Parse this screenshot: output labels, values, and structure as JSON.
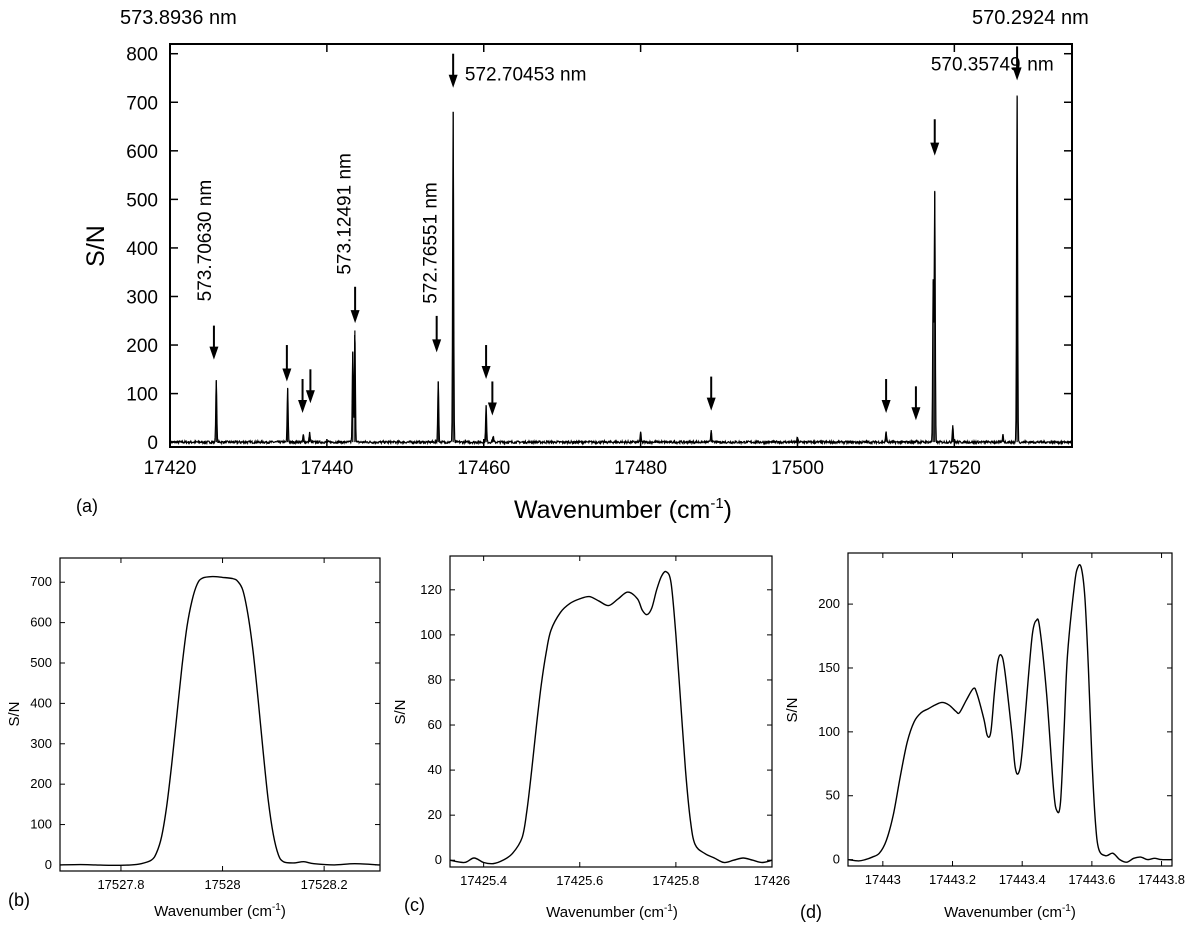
{
  "top_labels": {
    "left": "573.8936 nm",
    "right": "570.2924 nm"
  },
  "chart_data": [
    {
      "panel": "(a)",
      "type": "line",
      "xlabel": "Wavenumber (cm",
      "xlabel_sup": "-1",
      "xlabel_tail": ")",
      "ylabel": "S/N",
      "xlim": [
        17420,
        17535
      ],
      "ylim": [
        -10,
        820
      ],
      "xticks": [
        17420,
        17440,
        17460,
        17480,
        17500,
        17520
      ],
      "yticks": [
        0,
        100,
        200,
        300,
        400,
        500,
        600,
        700,
        800
      ],
      "peaks": [
        {
          "x": 17425.9,
          "y": 128
        },
        {
          "x": 17435.0,
          "y": 110
        },
        {
          "x": 17437.0,
          "y": 15
        },
        {
          "x": 17437.8,
          "y": 20
        },
        {
          "x": 17443.3,
          "y": 185
        },
        {
          "x": 17443.57,
          "y": 230
        },
        {
          "x": 17454.2,
          "y": 125
        },
        {
          "x": 17456.1,
          "y": 680
        },
        {
          "x": 17460.3,
          "y": 75
        },
        {
          "x": 17461.2,
          "y": 12
        },
        {
          "x": 17480.0,
          "y": 20
        },
        {
          "x": 17489.0,
          "y": 25
        },
        {
          "x": 17500.0,
          "y": 10
        },
        {
          "x": 17511.3,
          "y": 22
        },
        {
          "x": 17515.2,
          "y": 5
        },
        {
          "x": 17517.3,
          "y": 330
        },
        {
          "x": 17517.5,
          "y": 515
        },
        {
          "x": 17519.8,
          "y": 35
        },
        {
          "x": 17526.2,
          "y": 15
        },
        {
          "x": 17528.0,
          "y": 712
        }
      ],
      "arrows": [
        {
          "x": 17425.6,
          "y_tail": 240,
          "y_head": 170
        },
        {
          "x": 17434.9,
          "y_tail": 200,
          "y_head": 125
        },
        {
          "x": 17436.9,
          "y_tail": 130,
          "y_head": 60
        },
        {
          "x": 17437.9,
          "y_tail": 150,
          "y_head": 80
        },
        {
          "x": 17443.6,
          "y_tail": 320,
          "y_head": 245
        },
        {
          "x": 17454.0,
          "y_tail": 260,
          "y_head": 185
        },
        {
          "x": 17456.1,
          "y_tail": 800,
          "y_head": 730
        },
        {
          "x": 17460.3,
          "y_tail": 200,
          "y_head": 130
        },
        {
          "x": 17461.1,
          "y_tail": 125,
          "y_head": 55
        },
        {
          "x": 17489.0,
          "y_tail": 135,
          "y_head": 65
        },
        {
          "x": 17511.3,
          "y_tail": 130,
          "y_head": 60
        },
        {
          "x": 17515.1,
          "y_tail": 115,
          "y_head": 45
        },
        {
          "x": 17517.5,
          "y_tail": 665,
          "y_head": 590
        },
        {
          "x": 17528.0,
          "y_tail": 815,
          "y_head": 745
        }
      ],
      "annotations": [
        {
          "text": "573.70630 nm",
          "x": 17425.2,
          "y": 290,
          "rotation": -90
        },
        {
          "text": "573.12491 nm",
          "x": 17443.0,
          "y": 345,
          "rotation": -90
        },
        {
          "text": "572.76551 nm",
          "x": 17454.0,
          "y": 285,
          "rotation": -90
        },
        {
          "text": "572.70453 nm",
          "x": 17457.6,
          "y": 745,
          "rotation": 0
        },
        {
          "text": "570.35749",
          "x": 17517.0,
          "y": 765,
          "rotation": 0
        },
        {
          "text": "nm",
          "x": 17529.3,
          "y": 765,
          "rotation": 0
        }
      ]
    },
    {
      "panel": "(b)",
      "type": "line",
      "xlabel": "Wavenumber (cm",
      "xlabel_sup": "-1",
      "xlabel_tail": ")",
      "ylabel": "S/N",
      "xlim": [
        17527.68,
        17528.31
      ],
      "ylim": [
        -15,
        760
      ],
      "xticks": [
        17527.8,
        17528.0,
        17528.2
      ],
      "yticks": [
        0,
        100,
        200,
        300,
        400,
        500,
        600,
        700
      ],
      "points": [
        [
          17527.68,
          0
        ],
        [
          17527.72,
          1
        ],
        [
          17527.75,
          0
        ],
        [
          17527.78,
          -1
        ],
        [
          17527.82,
          0
        ],
        [
          17527.84,
          3
        ],
        [
          17527.86,
          12
        ],
        [
          17527.87,
          30
        ],
        [
          17527.88,
          70
        ],
        [
          17527.89,
          145
        ],
        [
          17527.9,
          250
        ],
        [
          17527.91,
          370
        ],
        [
          17527.92,
          490
        ],
        [
          17527.93,
          590
        ],
        [
          17527.94,
          655
        ],
        [
          17527.95,
          695
        ],
        [
          17527.96,
          710
        ],
        [
          17527.98,
          714
        ],
        [
          17528.0,
          712
        ],
        [
          17528.02,
          709
        ],
        [
          17528.03,
          702
        ],
        [
          17528.04,
          680
        ],
        [
          17528.05,
          620
        ],
        [
          17528.06,
          530
        ],
        [
          17528.07,
          410
        ],
        [
          17528.08,
          280
        ],
        [
          17528.09,
          160
        ],
        [
          17528.1,
          75
        ],
        [
          17528.11,
          25
        ],
        [
          17528.12,
          8
        ],
        [
          17528.14,
          5
        ],
        [
          17528.16,
          8
        ],
        [
          17528.18,
          3
        ],
        [
          17528.22,
          0
        ],
        [
          17528.26,
          3
        ],
        [
          17528.31,
          0
        ]
      ]
    },
    {
      "panel": "(c)",
      "type": "line",
      "xlabel": "Wavenumber (cm",
      "xlabel_sup": "-1",
      "xlabel_tail": ")",
      "ylabel": "S/N",
      "xlim": [
        17425.33,
        17426.0
      ],
      "ylim": [
        -3,
        135
      ],
      "xticks": [
        17425.4,
        17425.6,
        17425.8,
        17426.0
      ],
      "yticks": [
        0,
        20,
        40,
        60,
        80,
        100,
        120
      ],
      "points": [
        [
          17425.33,
          0
        ],
        [
          17425.36,
          -1
        ],
        [
          17425.38,
          1
        ],
        [
          17425.4,
          -1
        ],
        [
          17425.42,
          -1.5
        ],
        [
          17425.44,
          0
        ],
        [
          17425.46,
          3
        ],
        [
          17425.48,
          10
        ],
        [
          17425.49,
          22
        ],
        [
          17425.5,
          40
        ],
        [
          17425.51,
          60
        ],
        [
          17425.52,
          78
        ],
        [
          17425.53,
          92
        ],
        [
          17425.54,
          102
        ],
        [
          17425.56,
          110
        ],
        [
          17425.58,
          114
        ],
        [
          17425.6,
          116
        ],
        [
          17425.62,
          117
        ],
        [
          17425.64,
          115
        ],
        [
          17425.66,
          113
        ],
        [
          17425.68,
          116
        ],
        [
          17425.7,
          119
        ],
        [
          17425.72,
          116
        ],
        [
          17425.73,
          111
        ],
        [
          17425.74,
          109
        ],
        [
          17425.75,
          112
        ],
        [
          17425.76,
          120
        ],
        [
          17425.77,
          126
        ],
        [
          17425.78,
          128
        ],
        [
          17425.79,
          123
        ],
        [
          17425.8,
          100
        ],
        [
          17425.81,
          70
        ],
        [
          17425.82,
          40
        ],
        [
          17425.83,
          18
        ],
        [
          17425.84,
          7
        ],
        [
          17425.86,
          3
        ],
        [
          17425.88,
          1
        ],
        [
          17425.9,
          -1
        ],
        [
          17425.92,
          0
        ],
        [
          17425.94,
          1
        ],
        [
          17425.96,
          0
        ],
        [
          17425.98,
          -1
        ],
        [
          17426.0,
          0
        ]
      ]
    },
    {
      "panel": "(d)",
      "type": "line",
      "xlabel": "Wavenumber (cm",
      "xlabel_sup": "-1",
      "xlabel_tail": ")",
      "ylabel": "S/N",
      "xlim": [
        17442.9,
        17443.83
      ],
      "ylim": [
        -5,
        240
      ],
      "xticks": [
        17443.0,
        17443.2,
        17443.4,
        17443.6,
        17443.8
      ],
      "yticks": [
        0,
        50,
        100,
        150,
        200
      ],
      "points": [
        [
          17442.9,
          0
        ],
        [
          17442.93,
          -1
        ],
        [
          17442.95,
          0
        ],
        [
          17442.97,
          2
        ],
        [
          17442.99,
          5
        ],
        [
          17443.01,
          15
        ],
        [
          17443.03,
          35
        ],
        [
          17443.05,
          65
        ],
        [
          17443.07,
          92
        ],
        [
          17443.09,
          108
        ],
        [
          17443.11,
          115
        ],
        [
          17443.13,
          118
        ],
        [
          17443.15,
          121
        ],
        [
          17443.17,
          123
        ],
        [
          17443.19,
          121
        ],
        [
          17443.21,
          116
        ],
        [
          17443.22,
          115
        ],
        [
          17443.24,
          125
        ],
        [
          17443.26,
          134
        ],
        [
          17443.27,
          130
        ],
        [
          17443.29,
          110
        ],
        [
          17443.3,
          97
        ],
        [
          17443.31,
          100
        ],
        [
          17443.32,
          130
        ],
        [
          17443.33,
          155
        ],
        [
          17443.34,
          160
        ],
        [
          17443.35,
          148
        ],
        [
          17443.37,
          100
        ],
        [
          17443.38,
          72
        ],
        [
          17443.39,
          68
        ],
        [
          17443.4,
          85
        ],
        [
          17443.42,
          150
        ],
        [
          17443.43,
          178
        ],
        [
          17443.44,
          187
        ],
        [
          17443.45,
          182
        ],
        [
          17443.47,
          130
        ],
        [
          17443.49,
          55
        ],
        [
          17443.5,
          38
        ],
        [
          17443.51,
          45
        ],
        [
          17443.52,
          100
        ],
        [
          17443.53,
          160
        ],
        [
          17443.55,
          215
        ],
        [
          17443.56,
          229
        ],
        [
          17443.57,
          228
        ],
        [
          17443.58,
          205
        ],
        [
          17443.59,
          150
        ],
        [
          17443.6,
          80
        ],
        [
          17443.61,
          30
        ],
        [
          17443.62,
          8
        ],
        [
          17443.64,
          3
        ],
        [
          17443.66,
          5
        ],
        [
          17443.68,
          0
        ],
        [
          17443.7,
          -2
        ],
        [
          17443.72,
          1
        ],
        [
          17443.74,
          2
        ],
        [
          17443.76,
          0
        ],
        [
          17443.78,
          1
        ],
        [
          17443.8,
          0
        ],
        [
          17443.83,
          0
        ]
      ]
    }
  ]
}
